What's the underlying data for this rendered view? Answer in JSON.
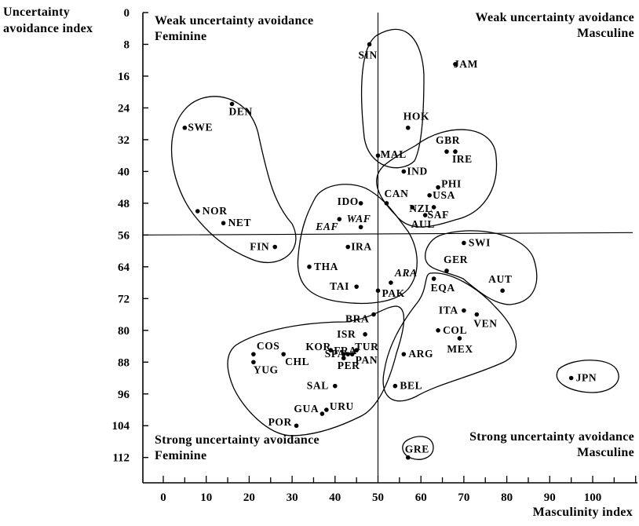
{
  "chart_data": {
    "type": "scatter",
    "xlabel": "Masculinity index",
    "ylabel": "Uncertainty avoidance index",
    "xlim": [
      0,
      110
    ],
    "ylim": [
      0,
      112
    ],
    "y_inverted": true,
    "x_ticks": [
      0,
      10,
      20,
      30,
      40,
      50,
      60,
      70,
      80,
      90,
      100
    ],
    "y_ticks": [
      0,
      8,
      16,
      24,
      32,
      40,
      48,
      56,
      64,
      72,
      80,
      88,
      96,
      104,
      112
    ],
    "reference_lines": {
      "x": 50,
      "y": 56
    },
    "quadrants": {
      "top_left": [
        "Weak uncertainty avoidance",
        "Feminine"
      ],
      "top_right": [
        "Weak uncertainty avoidance",
        "Masculine"
      ],
      "bottom_left": [
        "Strong uncertainty avoidance",
        "Feminine"
      ],
      "bottom_right": [
        "Strong uncertainty avoidance",
        "Masculine"
      ]
    },
    "points": [
      {
        "label": "SIN",
        "x": 48,
        "y": 8
      },
      {
        "label": "JAM",
        "x": 68,
        "y": 13
      },
      {
        "label": "DEN",
        "x": 16,
        "y": 23
      },
      {
        "label": "SWE",
        "x": 5,
        "y": 29
      },
      {
        "label": "HOK",
        "x": 57,
        "y": 29
      },
      {
        "label": "MAL",
        "x": 50,
        "y": 36
      },
      {
        "label": "GBR",
        "x": 66,
        "y": 35
      },
      {
        "label": "IRE",
        "x": 68,
        "y": 35
      },
      {
        "label": "IND",
        "x": 56,
        "y": 40
      },
      {
        "label": "PHI",
        "x": 64,
        "y": 44
      },
      {
        "label": "USA",
        "x": 62,
        "y": 46
      },
      {
        "label": "CAN",
        "x": 52,
        "y": 48
      },
      {
        "label": "NZL",
        "x": 58,
        "y": 49
      },
      {
        "label": "SAF",
        "x": 63,
        "y": 49
      },
      {
        "label": "AUL",
        "x": 61,
        "y": 51
      },
      {
        "label": "IDO",
        "x": 46,
        "y": 48
      },
      {
        "label": "NOR",
        "x": 8,
        "y": 50
      },
      {
        "label": "NET",
        "x": 14,
        "y": 53
      },
      {
        "label": "EAF",
        "x": 41,
        "y": 52,
        "italic": true
      },
      {
        "label": "WAF",
        "x": 46,
        "y": 54,
        "italic": true
      },
      {
        "label": "SWI",
        "x": 70,
        "y": 58
      },
      {
        "label": "FIN",
        "x": 26,
        "y": 59
      },
      {
        "label": "IRA",
        "x": 43,
        "y": 59
      },
      {
        "label": "GER",
        "x": 66,
        "y": 65
      },
      {
        "label": "THA",
        "x": 34,
        "y": 64
      },
      {
        "label": "ARA",
        "x": 53,
        "y": 68,
        "italic": true
      },
      {
        "label": "EQA",
        "x": 63,
        "y": 67
      },
      {
        "label": "TAI",
        "x": 45,
        "y": 69
      },
      {
        "label": "PAK",
        "x": 50,
        "y": 70
      },
      {
        "label": "AUT",
        "x": 79,
        "y": 70
      },
      {
        "label": "ITA",
        "x": 70,
        "y": 75
      },
      {
        "label": "VEN",
        "x": 73,
        "y": 76
      },
      {
        "label": "BRA",
        "x": 49,
        "y": 76
      },
      {
        "label": "COL",
        "x": 64,
        "y": 80
      },
      {
        "label": "ISR",
        "x": 47,
        "y": 81
      },
      {
        "label": "MEX",
        "x": 69,
        "y": 82
      },
      {
        "label": "KOR",
        "x": 39,
        "y": 85
      },
      {
        "label": "FRA",
        "x": 43,
        "y": 86
      },
      {
        "label": "TUR",
        "x": 45,
        "y": 85
      },
      {
        "label": "ARG",
        "x": 56,
        "y": 86
      },
      {
        "label": "COS",
        "x": 21,
        "y": 86
      },
      {
        "label": "CHL",
        "x": 28,
        "y": 86
      },
      {
        "label": "SPA",
        "x": 42,
        "y": 86
      },
      {
        "label": "PAN",
        "x": 44,
        "y": 86
      },
      {
        "label": "YUG",
        "x": 21,
        "y": 88
      },
      {
        "label": "PER",
        "x": 42,
        "y": 87
      },
      {
        "label": "JPN",
        "x": 95,
        "y": 92
      },
      {
        "label": "SAL",
        "x": 40,
        "y": 94
      },
      {
        "label": "BEL",
        "x": 54,
        "y": 94
      },
      {
        "label": "GUA",
        "x": 37,
        "y": 101
      },
      {
        "label": "URU",
        "x": 38,
        "y": 100
      },
      {
        "label": "POR",
        "x": 31,
        "y": 104
      },
      {
        "label": "GRE",
        "x": 57,
        "y": 112
      }
    ]
  }
}
